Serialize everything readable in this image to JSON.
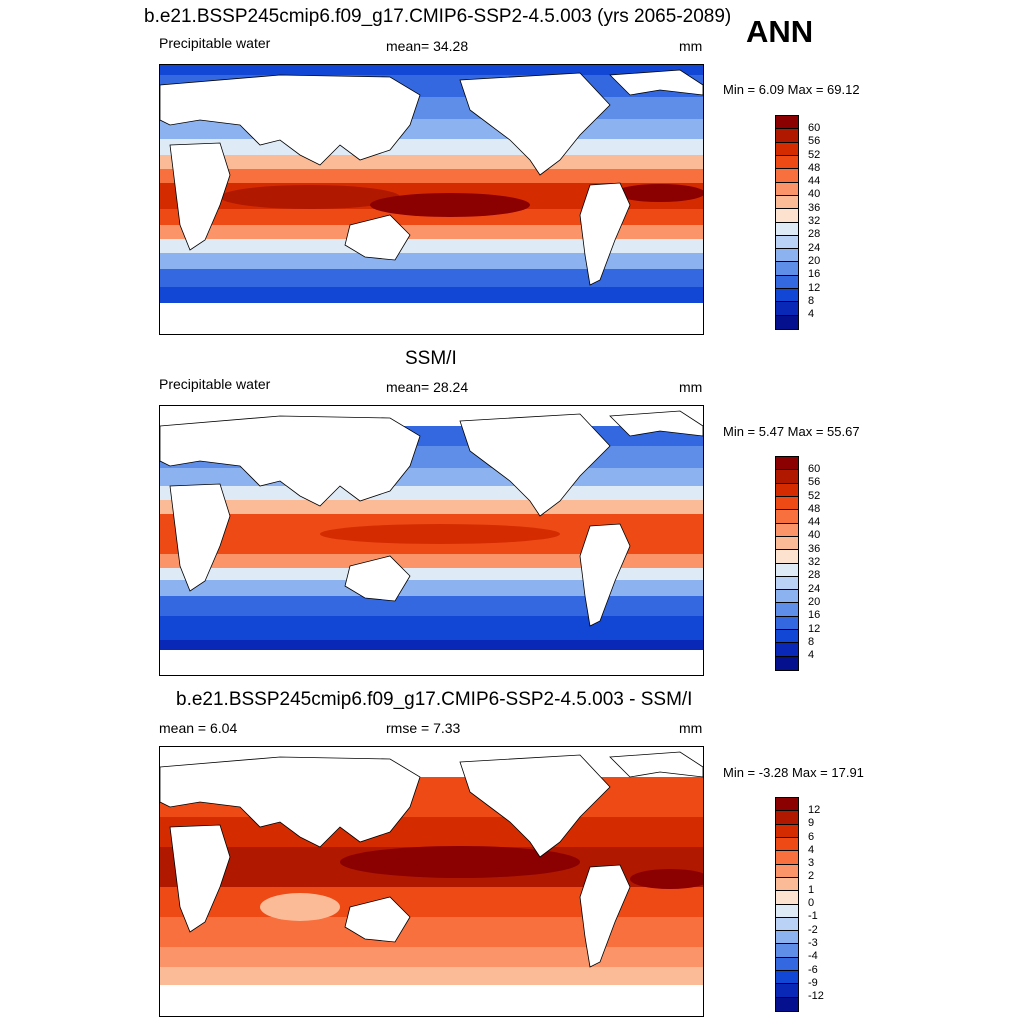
{
  "header": {
    "ann_label": "ANN"
  },
  "panels": [
    {
      "title": "b.e21.BSSP245cmip6.f09_g17.CMIP6-SSP2-4.5.003 (yrs 2065-2089)",
      "left": "Precipitable water",
      "center": "mean=  34.28",
      "units": "mm",
      "minmax": "Min =   6.09 Max =  69.12",
      "colorbar": {
        "ticks": [
          "60",
          "56",
          "52",
          "48",
          "44",
          "40",
          "36",
          "32",
          "28",
          "24",
          "20",
          "16",
          "12",
          "8",
          "4"
        ],
        "colors": [
          "#8b0000",
          "#b01800",
          "#d42c00",
          "#ee4a16",
          "#f7703e",
          "#fb9468",
          "#fcbb97",
          "#fde2cf",
          "#deebf7",
          "#b9d2f5",
          "#8db2f0",
          "#5f8ee8",
          "#3468e0",
          "#1246d4",
          "#0a28b8",
          "#05108e"
        ]
      }
    },
    {
      "title": "SSM/I",
      "left": "Precipitable water",
      "center": "mean=  28.24",
      "units": "mm",
      "minmax": "Min =   5.47 Max =  55.67",
      "colorbar": {
        "ticks": [
          "60",
          "56",
          "52",
          "48",
          "44",
          "40",
          "36",
          "32",
          "28",
          "24",
          "20",
          "16",
          "12",
          "8",
          "4"
        ],
        "colors": [
          "#8b0000",
          "#b01800",
          "#d42c00",
          "#ee4a16",
          "#f7703e",
          "#fb9468",
          "#fcbb97",
          "#fde2cf",
          "#deebf7",
          "#b9d2f5",
          "#8db2f0",
          "#5f8ee8",
          "#3468e0",
          "#1246d4",
          "#0a28b8",
          "#05108e"
        ]
      }
    },
    {
      "title": "b.e21.BSSP245cmip6.f09_g17.CMIP6-SSP2-4.5.003 - SSM/I",
      "left": "mean =   6.04",
      "center": "rmse =   7.33",
      "units": "mm",
      "minmax": "Min =  -3.28 Max =  17.91",
      "colorbar": {
        "ticks": [
          "12",
          "9",
          "6",
          "4",
          "3",
          "2",
          "1",
          "0",
          "-1",
          "-2",
          "-3",
          "-4",
          "-6",
          "-9",
          "-12"
        ],
        "colors": [
          "#8b0000",
          "#b01800",
          "#d42c00",
          "#ee4a16",
          "#f7703e",
          "#fb9468",
          "#fcbb97",
          "#fde2cf",
          "#deebf7",
          "#b9d2f5",
          "#8db2f0",
          "#5f8ee8",
          "#3468e0",
          "#1246d4",
          "#0a28b8",
          "#05108e"
        ]
      }
    }
  ]
}
